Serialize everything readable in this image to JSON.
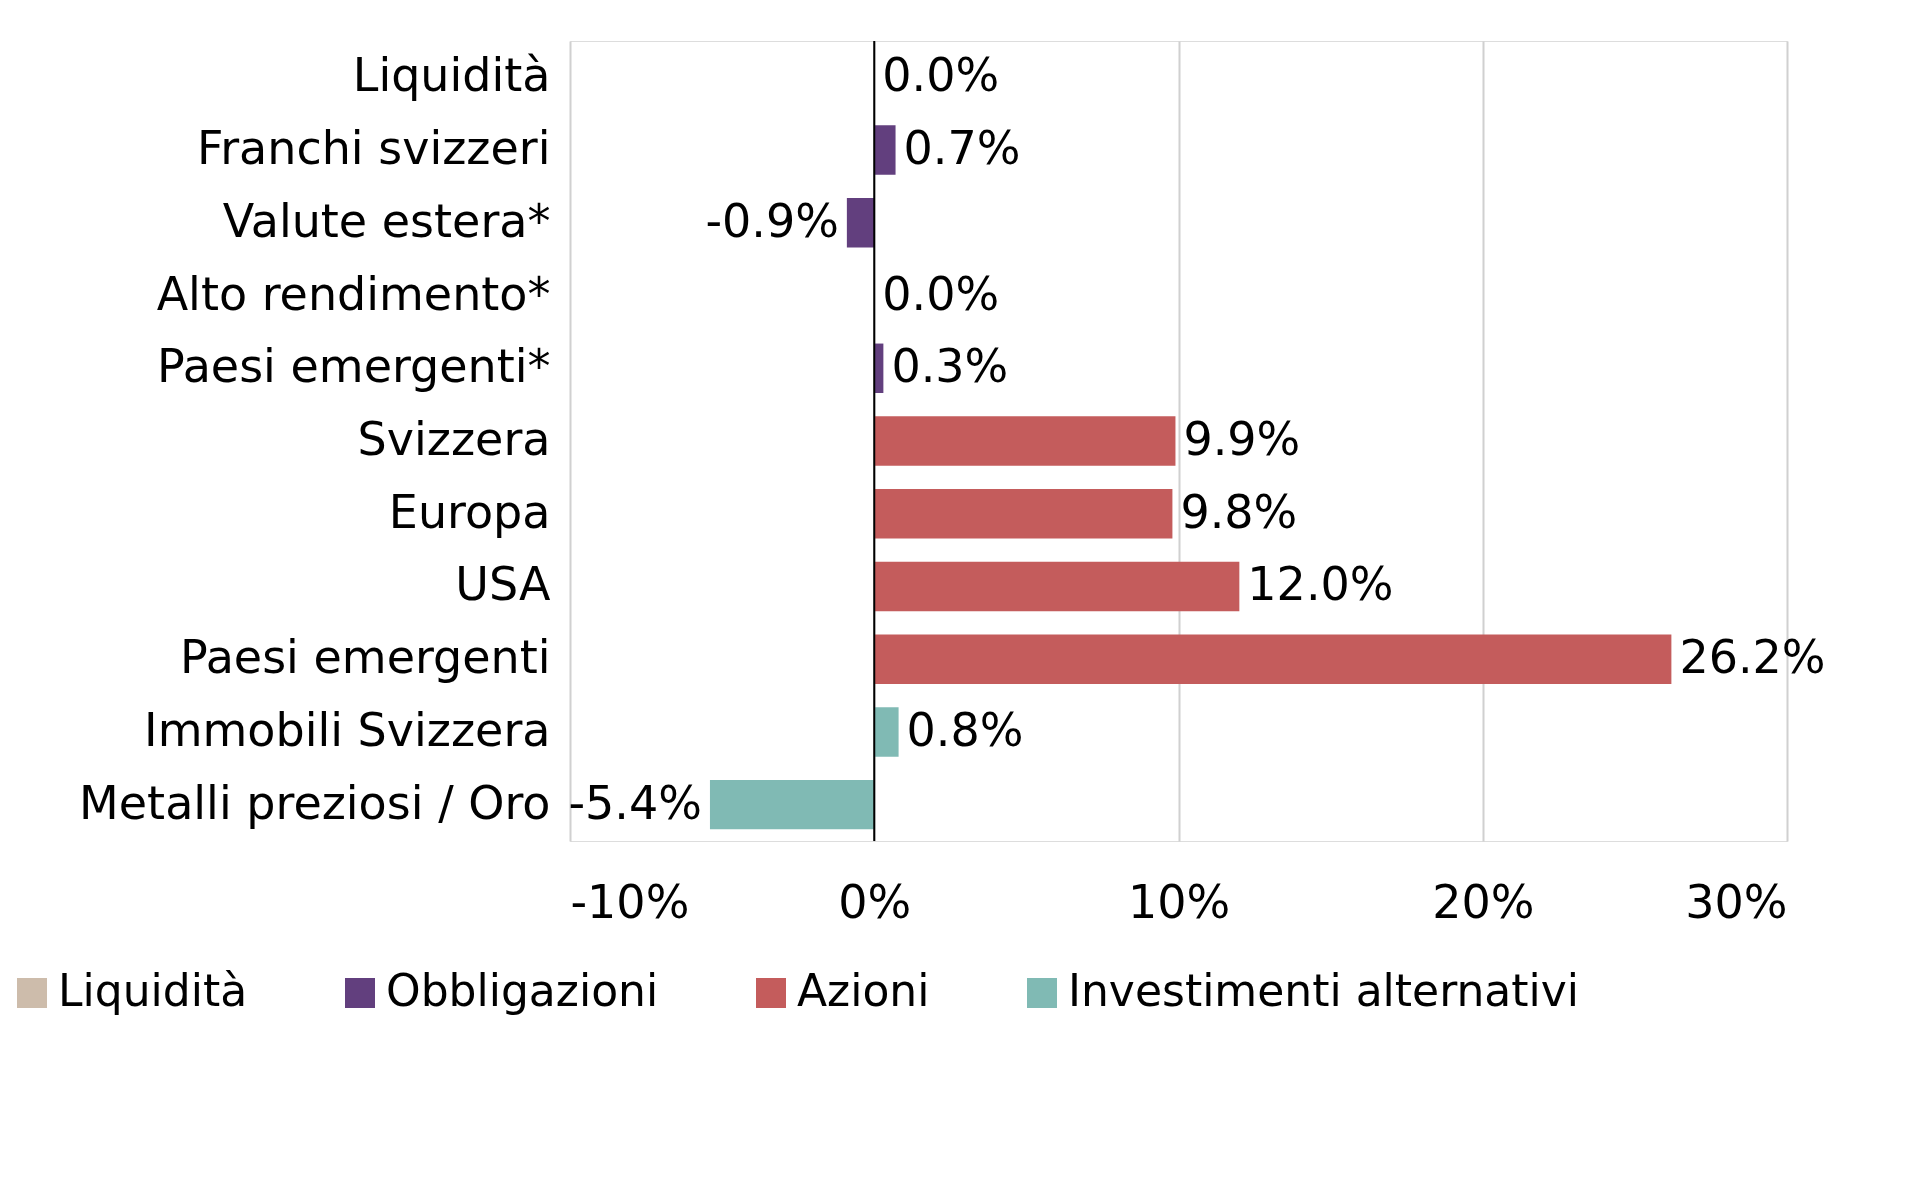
{
  "chart_data": {
    "type": "bar",
    "orientation": "horizontal",
    "categories": [
      "Liquidità",
      "Franchi svizzeri",
      "Valute estera*",
      "Alto rendimento*",
      "Paesi emergenti*",
      "Svizzera",
      "Europa",
      "USA",
      "Paesi emergenti",
      "Immobili Svizzera",
      "Metalli preziosi / Oro"
    ],
    "series": [
      {
        "name": "Liquidità",
        "color": "#cdbcab",
        "values": [
          0.0,
          null,
          null,
          null,
          null,
          null,
          null,
          null,
          null,
          null,
          null
        ],
        "value_labels": [
          "0.0%",
          null,
          null,
          null,
          null,
          null,
          null,
          null,
          null,
          null,
          null
        ]
      },
      {
        "name": "Obbligazioni",
        "color": "#623f7e",
        "values": [
          null,
          0.7,
          -0.9,
          0.0,
          0.3,
          null,
          null,
          null,
          null,
          null,
          null
        ],
        "value_labels": [
          null,
          "0.7%",
          "-0.9%",
          "0.0%",
          "0.3%",
          null,
          null,
          null,
          null,
          null,
          null
        ]
      },
      {
        "name": "Azioni",
        "color": "#c45c5c",
        "values": [
          null,
          null,
          null,
          null,
          null,
          9.9,
          9.8,
          12.0,
          26.2,
          null,
          null
        ],
        "value_labels": [
          null,
          null,
          null,
          null,
          null,
          "9.9%",
          "9.8%",
          "12.0%",
          "26.2%",
          null,
          null
        ]
      },
      {
        "name": "Investimenti alternativi",
        "color": "#80bab4",
        "values": [
          null,
          null,
          null,
          null,
          null,
          null,
          null,
          null,
          null,
          0.8,
          -5.4
        ],
        "value_labels": [
          null,
          null,
          null,
          null,
          null,
          null,
          null,
          null,
          null,
          "0.8%",
          "-5.4%"
        ]
      }
    ],
    "xlim": [
      -10,
      30
    ],
    "xticks": [
      {
        "value": -10,
        "label": "-10%"
      },
      {
        "value": 0,
        "label": "0%"
      },
      {
        "value": 10,
        "label": "10%"
      },
      {
        "value": 20,
        "label": "20%"
      },
      {
        "value": 30,
        "label": "30%"
      }
    ],
    "ref_lines": [
      {
        "axis": "x",
        "value": 0,
        "color": "#000000"
      }
    ],
    "grid": "x",
    "legend": "bottom"
  }
}
